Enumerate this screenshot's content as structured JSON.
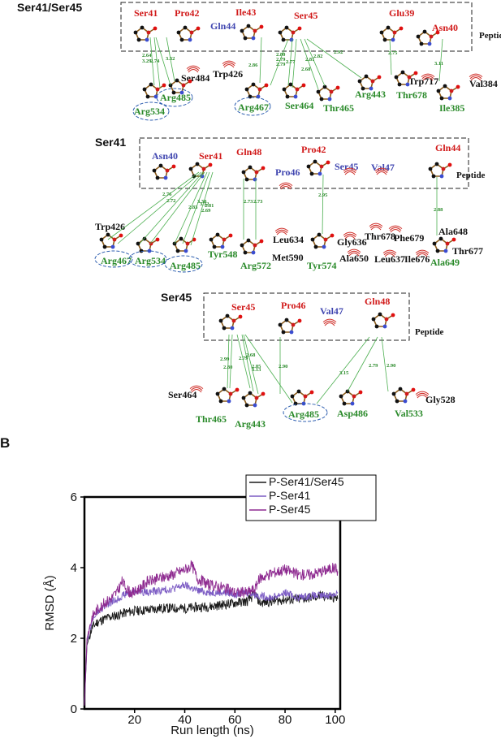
{
  "colors": {
    "peptide_residue": "#d11a1a",
    "hydrophobic_peptide": "#4046b0",
    "hbond_residue": "#2a8a2a",
    "hbond_line": "#4caf50",
    "series_black": "#1a1a1a",
    "series_lavender": "#7c5cc4",
    "series_purple": "#8e2a90"
  },
  "panel_a": {
    "peptide_label": "Peptide",
    "sub1": {
      "title": "Ser41/Ser45",
      "peptide_residues": [
        "Ser41",
        "Pro42",
        "Ile43",
        "Gln44",
        "Ser45",
        "Glu39",
        "Asn40"
      ],
      "receptor_residues": [
        "Ser484",
        "Trp426",
        "Arg534",
        "Arg485",
        "Arg467",
        "Ser464",
        "Thr465",
        "Arg443",
        "Thr678",
        "Trp717",
        "Val384",
        "Ile385"
      ],
      "distances": [
        "2.64",
        "3.29",
        "2.74",
        "3.32",
        "2.86",
        "2.80",
        "2.79",
        "2.79",
        "2.77",
        "2.81",
        "2.82",
        "2.68",
        "2.92",
        "2.75",
        "3.11"
      ]
    },
    "sub2": {
      "title": "Ser41",
      "peptide_residues": [
        "Asn40",
        "Ser41",
        "Gln48",
        "Pro42",
        "Pro46",
        "Ser45",
        "Val47",
        "Gln44"
      ],
      "receptor_residues": [
        "Trp426",
        "Arg467",
        "Arg534",
        "Arg485",
        "Tyr548",
        "Arg572",
        "Leu634",
        "Met590",
        "Tyr574",
        "Gly636",
        "Ala650",
        "Thr678",
        "Phe679",
        "Leu637",
        "Ile676",
        "Ala648",
        "Thr677",
        "Ala649"
      ],
      "distances": [
        "2.76",
        "2.72",
        "3.32",
        "2.83",
        "2.81",
        "3.30",
        "2.69",
        "2.73",
        "2.73",
        "2.95",
        "2.88"
      ]
    },
    "sub3": {
      "title": "Ser45",
      "peptide_residues": [
        "Ser45",
        "Pro46",
        "Val47",
        "Gln48"
      ],
      "receptor_residues": [
        "Ser464",
        "Thr465",
        "Arg443",
        "Arg485",
        "Asp486",
        "Val533",
        "Gly528"
      ],
      "distances": [
        "2.99",
        "2.80",
        "2.68",
        "2.79",
        "2.85",
        "3.13",
        "2.90",
        "3.15",
        "2.79",
        "2.90"
      ]
    }
  },
  "panel_b": {
    "panel_letter": "B",
    "chart_data": {
      "type": "line",
      "xlabel": "Run length (ns)",
      "ylabel": "RMSD (Å)",
      "xlim": [
        0,
        102
      ],
      "ylim": [
        0,
        6
      ],
      "xticks": [
        20,
        40,
        60,
        80,
        100
      ],
      "yticks": [
        0,
        2,
        4,
        6
      ],
      "grid": false,
      "legend_position": "top-right",
      "series": [
        {
          "name": "P-Ser41/Ser45",
          "color": "#1a1a1a",
          "x": [
            0,
            1,
            3,
            5,
            8,
            10,
            13,
            15,
            18,
            20,
            25,
            30,
            35,
            40,
            45,
            50,
            55,
            60,
            65,
            68,
            70,
            75,
            80,
            85,
            90,
            95,
            100,
            101
          ],
          "y": [
            0.1,
            1.8,
            2.3,
            2.45,
            2.55,
            2.6,
            2.65,
            2.7,
            2.75,
            2.78,
            2.8,
            2.85,
            2.85,
            2.85,
            2.88,
            2.9,
            2.95,
            3.0,
            3.05,
            3.25,
            3.0,
            3.05,
            3.1,
            3.1,
            3.15,
            3.2,
            3.15,
            3.1
          ]
        },
        {
          "name": "P-Ser41",
          "color": "#7c5cc4",
          "x": [
            0,
            1,
            3,
            5,
            8,
            10,
            13,
            15,
            18,
            20,
            25,
            30,
            35,
            40,
            45,
            50,
            55,
            60,
            65,
            70,
            75,
            80,
            85,
            90,
            95,
            100,
            101
          ],
          "y": [
            0.1,
            1.9,
            2.5,
            2.7,
            2.9,
            3.0,
            3.1,
            3.2,
            3.3,
            3.35,
            3.3,
            3.35,
            3.4,
            3.5,
            3.35,
            3.3,
            3.3,
            3.25,
            3.3,
            3.2,
            3.15,
            3.3,
            3.15,
            3.2,
            3.2,
            3.25,
            3.3
          ]
        },
        {
          "name": "P-Ser45",
          "color": "#8e2a90",
          "x": [
            0,
            1,
            3,
            5,
            8,
            10,
            13,
            15,
            18,
            20,
            25,
            30,
            35,
            40,
            43,
            45,
            50,
            55,
            60,
            65,
            68,
            70,
            75,
            80,
            85,
            90,
            95,
            100,
            101
          ],
          "y": [
            0.1,
            2.0,
            2.6,
            2.8,
            3.0,
            3.1,
            3.3,
            3.6,
            3.3,
            3.3,
            3.6,
            3.7,
            3.8,
            3.95,
            4.05,
            3.7,
            3.5,
            3.45,
            3.3,
            3.3,
            3.4,
            3.7,
            3.85,
            3.95,
            3.8,
            3.8,
            3.9,
            4.0,
            3.9
          ]
        }
      ]
    }
  }
}
